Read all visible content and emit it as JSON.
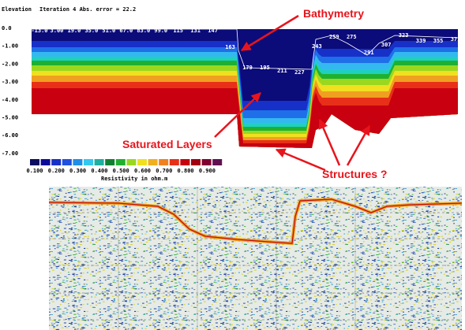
{
  "figure": {
    "elevation_label": "Elevation",
    "iteration_label": "Iteration 4 Abs. error = 22.2",
    "depth_labels": [
      "0.0",
      "-1.00",
      "-2.00",
      "-3.00",
      "-4.00",
      "-5.00",
      "-6.00",
      "-7.00"
    ],
    "distance_labels": [
      "-13.0",
      "3.00",
      "19.0",
      "35.0",
      "51.0",
      "67.0",
      "83.0",
      "99.0",
      "115",
      "131",
      "147",
      "163",
      "179",
      "195",
      "211",
      "227",
      "243",
      "259",
      "275",
      "291",
      "307",
      "323",
      "339",
      "355",
      "371"
    ],
    "legend": {
      "labels": [
        "0.100",
        "0.200",
        "0.300",
        "0.400",
        "0.500",
        "0.600",
        "0.700",
        "0.800",
        "0.900"
      ],
      "title": "Resistivity in ohm.m"
    },
    "annotations": [
      "Bathymetry",
      "Saturated Layers",
      "Structures ?"
    ]
  }
}
